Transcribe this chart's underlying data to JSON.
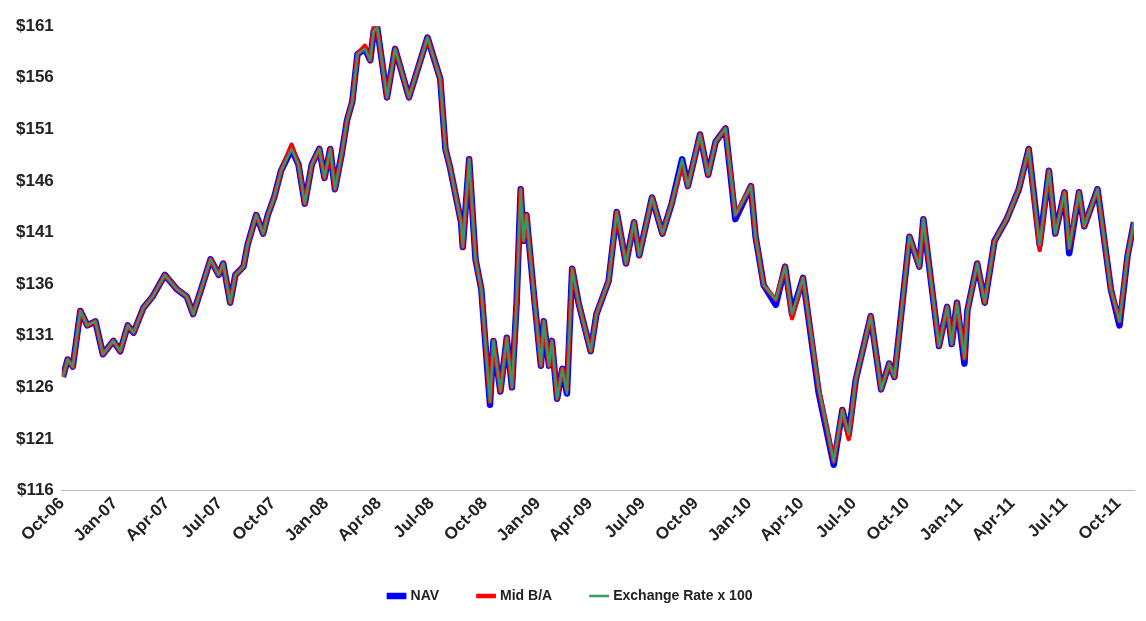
{
  "chart_data": {
    "type": "line",
    "x": [
      "2006-10-03",
      "2006-10-11",
      "2006-10-20",
      "2006-11-02",
      "2006-11-14",
      "2006-11-28",
      "2006-12-11",
      "2006-12-29",
      "2007-01-10",
      "2007-01-23",
      "2007-02-02",
      "2007-02-19",
      "2007-03-07",
      "2007-03-28",
      "2007-04-18",
      "2007-05-05",
      "2007-05-16",
      "2007-05-28",
      "2007-06-15",
      "2007-06-29",
      "2007-07-07",
      "2007-07-19",
      "2007-07-28",
      "2007-08-11",
      "2007-08-18",
      "2007-09-02",
      "2007-09-14",
      "2007-09-22",
      "2007-10-03",
      "2007-10-15",
      "2007-11-02",
      "2007-11-14",
      "2007-11-25",
      "2007-12-07",
      "2007-12-20",
      "2007-12-29",
      "2008-01-08",
      "2008-01-16",
      "2008-01-28",
      "2008-02-06",
      "2008-02-15",
      "2008-02-24",
      "2008-03-08",
      "2008-03-17",
      "2008-03-23",
      "2008-03-29",
      "2008-04-15",
      "2008-04-29",
      "2008-05-23",
      "2008-06-24",
      "2008-07-16",
      "2008-07-25",
      "2008-08-02",
      "2008-08-21",
      "2008-08-24",
      "2008-09-04",
      "2008-09-15",
      "2008-09-25",
      "2008-10-10",
      "2008-10-16",
      "2008-10-28",
      "2008-11-08",
      "2008-11-17",
      "2008-11-25",
      "2008-12-02",
      "2008-12-07",
      "2008-12-12",
      "2008-12-24",
      "2009-01-06",
      "2009-01-11",
      "2009-01-20",
      "2009-01-25",
      "2009-02-03",
      "2009-02-12",
      "2009-02-20",
      "2009-03-01",
      "2009-03-12",
      "2009-04-02",
      "2009-04-12",
      "2009-05-03",
      "2009-05-17",
      "2009-06-02",
      "2009-06-16",
      "2009-06-25",
      "2009-07-17",
      "2009-08-04",
      "2009-08-20",
      "2009-09-07",
      "2009-09-17",
      "2009-10-08",
      "2009-10-22",
      "2009-11-04",
      "2009-11-21",
      "2009-12-08",
      "2010-01-04",
      "2010-01-12",
      "2010-01-26",
      "2010-02-16",
      "2010-03-04",
      "2010-03-16",
      "2010-04-04",
      "2010-05-01",
      "2010-05-27",
      "2010-06-11",
      "2010-06-22",
      "2010-07-04",
      "2010-07-30",
      "2010-08-17",
      "2010-08-31",
      "2010-09-09",
      "2010-10-05",
      "2010-10-22",
      "2010-10-29",
      "2010-11-25",
      "2010-12-09",
      "2010-12-17",
      "2010-12-26",
      "2011-01-08",
      "2011-01-13",
      "2011-01-30",
      "2011-02-12",
      "2011-03-01",
      "2011-03-22",
      "2011-04-12",
      "2011-04-29",
      "2011-05-18",
      "2011-06-03",
      "2011-06-14",
      "2011-06-30",
      "2011-07-08",
      "2011-07-25",
      "2011-08-03",
      "2011-08-26",
      "2011-09-18",
      "2011-10-03",
      "2011-10-17",
      "2011-10-28"
    ],
    "series": [
      {
        "name": "NAV",
        "color": "#0000ff",
        "values": [
          127.0,
          128.7,
          128.0,
          133.4,
          132.0,
          132.4,
          129.2,
          130.5,
          129.5,
          132.0,
          131.3,
          133.7,
          134.8,
          136.9,
          135.5,
          134.8,
          133.1,
          135.2,
          138.4,
          136.9,
          138.0,
          134.2,
          136.9,
          137.7,
          139.8,
          142.7,
          140.9,
          142.7,
          144.4,
          147.0,
          149.1,
          147.6,
          143.8,
          147.6,
          149.1,
          146.3,
          149.1,
          145.2,
          148.7,
          151.9,
          153.7,
          158.3,
          158.8,
          157.7,
          160.5,
          160.9,
          154.1,
          158.8,
          154.1,
          159.9,
          155.9,
          149.1,
          147.3,
          142.0,
          139.6,
          148.1,
          138.4,
          135.5,
          124.3,
          130.5,
          125.6,
          130.8,
          126.0,
          134.2,
          145.2,
          140.2,
          142.7,
          135.5,
          128.1,
          132.4,
          128.1,
          130.5,
          124.9,
          127.8,
          125.4,
          137.5,
          134.2,
          129.5,
          133.1,
          136.3,
          143.0,
          138.0,
          142.0,
          138.8,
          144.4,
          140.9,
          143.8,
          148.1,
          145.5,
          150.5,
          146.6,
          149.8,
          151.1,
          142.3,
          145.5,
          140.6,
          135.9,
          134.0,
          137.7,
          133.1,
          136.6,
          125.5,
          118.5,
          123.8,
          121.4,
          126.7,
          132.9,
          125.8,
          128.3,
          127.0,
          140.6,
          137.7,
          142.3,
          130.0,
          133.8,
          130.2,
          134.2,
          128.3,
          133.4,
          138.0,
          134.2,
          140.2,
          142.3,
          145.2,
          149.1,
          139.8,
          147.0,
          140.9,
          144.9,
          139.0,
          144.9,
          141.6,
          145.2,
          135.5,
          132.0,
          138.8,
          142.0
        ]
      },
      {
        "name": "Mid B/A",
        "color": "#ff0000",
        "values": [
          127.0,
          128.7,
          128.0,
          133.4,
          132.0,
          132.4,
          129.2,
          130.5,
          129.5,
          132.0,
          131.3,
          133.7,
          134.8,
          136.9,
          135.5,
          134.8,
          133.1,
          135.2,
          138.4,
          136.9,
          138.0,
          134.2,
          136.9,
          137.7,
          139.8,
          142.7,
          140.9,
          142.7,
          144.4,
          147.0,
          149.5,
          147.6,
          143.8,
          147.6,
          149.1,
          146.3,
          149.1,
          145.2,
          148.7,
          151.9,
          153.7,
          158.3,
          159.1,
          157.7,
          160.9,
          160.9,
          154.1,
          158.8,
          154.1,
          159.9,
          155.9,
          149.1,
          147.3,
          142.0,
          139.6,
          148.1,
          138.4,
          135.5,
          124.6,
          130.5,
          125.6,
          130.8,
          126.0,
          134.2,
          145.2,
          140.2,
          142.7,
          135.5,
          128.1,
          132.4,
          128.1,
          130.5,
          124.9,
          127.8,
          125.8,
          137.5,
          134.2,
          129.5,
          133.1,
          136.3,
          143.0,
          138.0,
          142.0,
          138.8,
          144.4,
          140.9,
          143.8,
          147.6,
          145.5,
          150.5,
          146.6,
          149.8,
          151.1,
          142.7,
          145.5,
          140.6,
          135.9,
          134.5,
          137.7,
          132.7,
          136.6,
          125.9,
          118.8,
          123.8,
          121.0,
          126.7,
          132.9,
          125.8,
          128.3,
          127.0,
          140.6,
          137.7,
          142.3,
          130.0,
          133.8,
          130.2,
          134.2,
          128.8,
          133.4,
          138.0,
          134.2,
          140.2,
          142.3,
          145.2,
          149.1,
          139.3,
          147.0,
          140.9,
          144.9,
          139.5,
          144.9,
          141.6,
          145.2,
          135.5,
          132.4,
          138.8,
          142.0
        ]
      },
      {
        "name": "Exchange Rate x 100",
        "color": "#339966",
        "values": [
          127.0,
          128.7,
          128.0,
          133.4,
          132.0,
          132.4,
          129.2,
          130.5,
          129.5,
          132.0,
          131.3,
          133.7,
          134.8,
          136.9,
          135.5,
          134.8,
          133.1,
          135.2,
          138.4,
          136.9,
          138.0,
          134.2,
          136.9,
          137.7,
          139.8,
          142.7,
          140.9,
          142.7,
          144.4,
          147.0,
          149.1,
          147.6,
          143.8,
          147.6,
          149.1,
          146.3,
          149.1,
          145.2,
          148.7,
          151.9,
          153.7,
          158.3,
          158.8,
          157.7,
          160.5,
          160.9,
          154.1,
          158.8,
          154.1,
          159.9,
          155.9,
          149.1,
          147.3,
          142.0,
          139.6,
          148.1,
          138.4,
          135.5,
          124.6,
          130.5,
          125.6,
          130.8,
          126.0,
          134.2,
          145.2,
          140.2,
          142.7,
          135.5,
          128.1,
          132.4,
          128.1,
          130.5,
          124.9,
          127.8,
          125.4,
          137.5,
          134.2,
          129.5,
          133.1,
          136.3,
          143.0,
          138.0,
          142.0,
          138.8,
          144.4,
          140.9,
          143.8,
          148.1,
          145.5,
          150.5,
          146.6,
          149.8,
          151.1,
          142.7,
          145.5,
          140.6,
          135.9,
          134.5,
          137.7,
          133.1,
          136.6,
          125.9,
          118.8,
          123.8,
          121.4,
          126.7,
          132.9,
          125.8,
          128.3,
          127.0,
          140.6,
          137.7,
          142.3,
          130.0,
          133.8,
          130.2,
          134.2,
          128.8,
          133.4,
          138.0,
          134.2,
          140.2,
          142.3,
          145.2,
          149.1,
          139.8,
          147.0,
          140.9,
          144.9,
          139.5,
          144.9,
          141.6,
          145.2,
          135.5,
          132.4,
          138.8,
          142.0
        ]
      }
    ],
    "xlim": [
      "2006-10-01",
      "2011-10-28"
    ],
    "xticks": [
      {
        "value": "2006-10-01",
        "label": "Oct-06"
      },
      {
        "value": "2007-01-01",
        "label": "Jan-07"
      },
      {
        "value": "2007-04-01",
        "label": "Apr-07"
      },
      {
        "value": "2007-07-01",
        "label": "Jul-07"
      },
      {
        "value": "2007-10-01",
        "label": "Oct-07"
      },
      {
        "value": "2008-01-01",
        "label": "Jan-08"
      },
      {
        "value": "2008-04-01",
        "label": "Apr-08"
      },
      {
        "value": "2008-07-01",
        "label": "Jul-08"
      },
      {
        "value": "2008-10-01",
        "label": "Oct-08"
      },
      {
        "value": "2009-01-01",
        "label": "Jan-09"
      },
      {
        "value": "2009-04-01",
        "label": "Apr-09"
      },
      {
        "value": "2009-07-01",
        "label": "Jul-09"
      },
      {
        "value": "2009-10-01",
        "label": "Oct-09"
      },
      {
        "value": "2010-01-01",
        "label": "Jan-10"
      },
      {
        "value": "2010-04-01",
        "label": "Apr-10"
      },
      {
        "value": "2010-07-01",
        "label": "Jul-10"
      },
      {
        "value": "2010-10-01",
        "label": "Oct-10"
      },
      {
        "value": "2011-01-01",
        "label": "Jan-11"
      },
      {
        "value": "2011-04-01",
        "label": "Apr-11"
      },
      {
        "value": "2011-07-01",
        "label": "Jul-11"
      },
      {
        "value": "2011-10-01",
        "label": "Oct-11"
      }
    ],
    "ylim": [
      116,
      161
    ],
    "yticks": [
      {
        "value": 116,
        "label": "$116"
      },
      {
        "value": 121,
        "label": "$121"
      },
      {
        "value": 126,
        "label": "$126"
      },
      {
        "value": 131,
        "label": "$131"
      },
      {
        "value": 136,
        "label": "$136"
      },
      {
        "value": 141,
        "label": "$141"
      },
      {
        "value": 146,
        "label": "$146"
      },
      {
        "value": 151,
        "label": "$151"
      },
      {
        "value": 156,
        "label": "$156"
      },
      {
        "value": 161,
        "label": "$161"
      }
    ],
    "grid": false,
    "legend": "bottom",
    "marker": "none",
    "line_style": "solid"
  }
}
